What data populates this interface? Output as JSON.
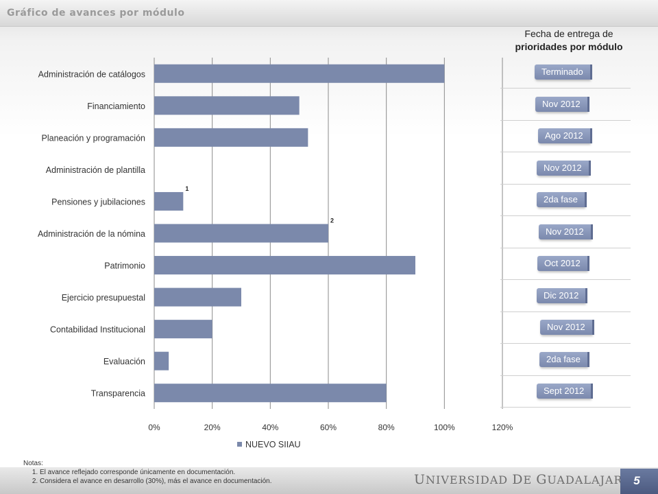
{
  "slide": {
    "title": "Gráfico de avances por módulo",
    "page_number": "5",
    "institution": "Universidad de Guadalajara"
  },
  "status_panel": {
    "heading_line1": "Fecha de entrega de",
    "heading_line2": "prioridades por módulo",
    "items": [
      "Terminado",
      "Nov 2012",
      "Ago 2012",
      "Nov 2012",
      "2da fase",
      "Nov 2012",
      "Oct 2012",
      "Dic 2012",
      "Nov 2012",
      "2da fase",
      "Sept 2012"
    ]
  },
  "notes": {
    "heading": "Notas:",
    "items": [
      "El avance reflejado corresponde únicamente en documentación.",
      "Considera el avance en desarrollo (30%), más el avance en documentación."
    ]
  },
  "colors": {
    "bar": "#7b89ab",
    "status_tab": "#8492b6"
  },
  "chart_data": {
    "type": "bar",
    "orientation": "horizontal",
    "categories": [
      "Administración de catálogos",
      "Financiamiento",
      "Planeación y programación",
      "Administración de plantilla",
      "Pensiones y jubilaciones",
      "Administración de la nómina",
      "Patrimonio",
      "Ejercicio presupuestal",
      "Contabilidad Institucional",
      "Evaluación",
      "Transparencia"
    ],
    "series": [
      {
        "name": "NUEVO SIIAU",
        "values": [
          1.0,
          0.5,
          0.53,
          0,
          0.1,
          0.6,
          0.9,
          0.3,
          0.2,
          0.05,
          0.8
        ]
      }
    ],
    "annotations": [
      {
        "category": "Pensiones y jubilaciones",
        "text": "1"
      },
      {
        "category": "Administración de la nómina",
        "text": "2"
      }
    ],
    "xlim": [
      0,
      1.2
    ],
    "xticks": [
      "0%",
      "20%",
      "40%",
      "60%",
      "80%",
      "100%",
      "120%"
    ],
    "grid": "vertical",
    "legend": "bottom"
  }
}
